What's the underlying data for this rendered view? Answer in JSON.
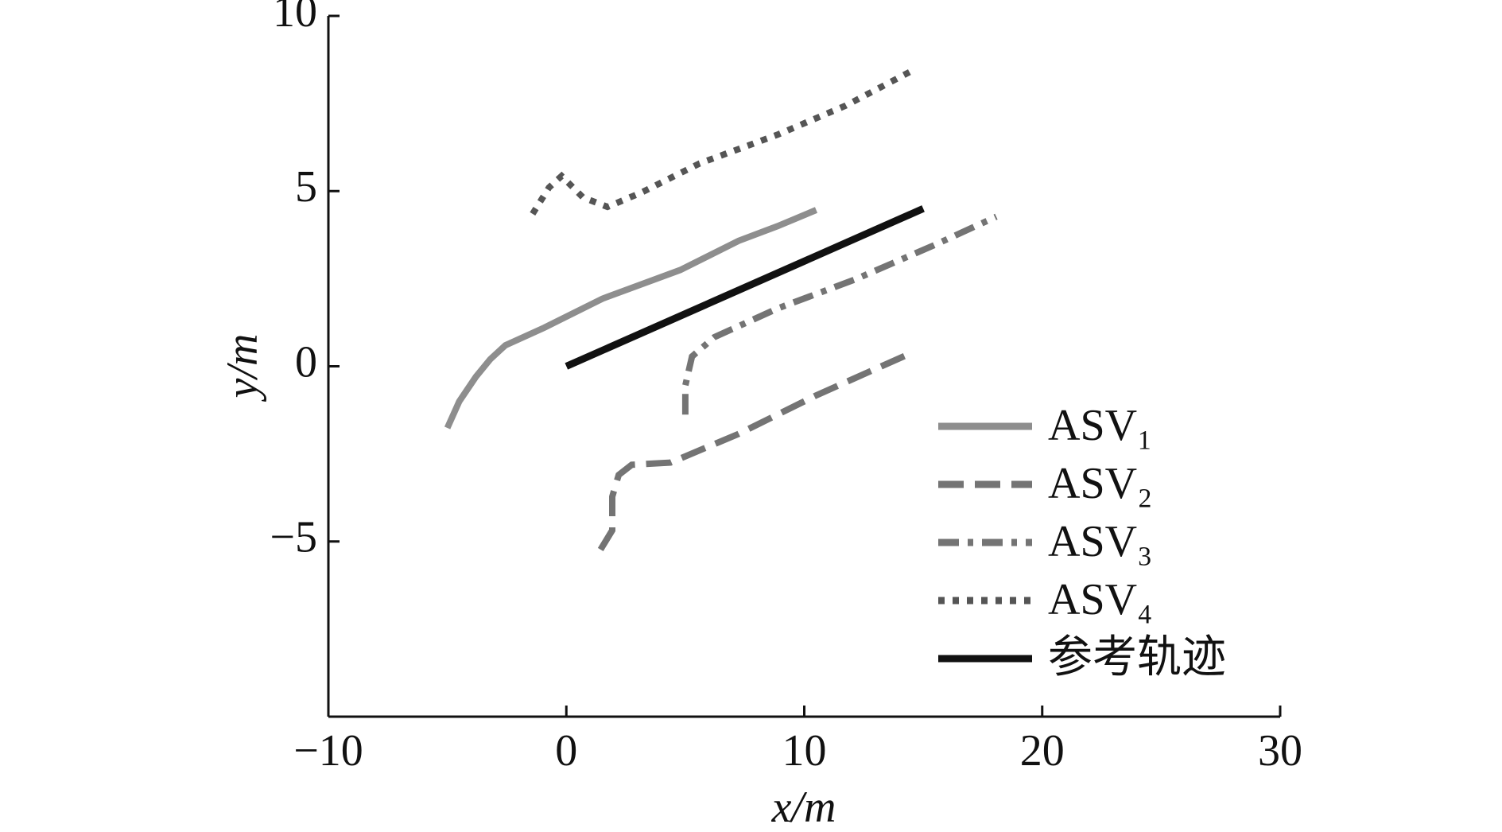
{
  "chart_data": {
    "type": "line",
    "xlabel": "x/m",
    "ylabel": "y/m",
    "xlim": [
      -10,
      30
    ],
    "ylim": [
      -10,
      10
    ],
    "xticks": [
      {
        "value": -10,
        "label": "−10"
      },
      0,
      10,
      20,
      30
    ],
    "yticks": [
      {
        "value": -5,
        "label": "−5"
      },
      0,
      5,
      10
    ],
    "grid": false,
    "legend": "lower right",
    "series": [
      {
        "name": "ASV₁",
        "color": "#8e8e8e",
        "style": "solid",
        "x": [
          -5.0,
          -4.5,
          -3.8,
          -3.2,
          -2.56,
          -0.93,
          1.52,
          4.79,
          7.24,
          8.88,
          10.5
        ],
        "y": [
          -1.76,
          -1.0,
          -0.3,
          0.2,
          0.6,
          1.1,
          1.93,
          2.75,
          3.58,
          4.0,
          4.46
        ]
      },
      {
        "name": "ASV₂",
        "color": "#747474",
        "style": "dashed",
        "x": [
          1.44,
          1.93,
          1.93,
          2.2,
          2.75,
          4.38,
          7.24,
          10.5,
          14.6
        ],
        "y": [
          -5.23,
          -4.68,
          -3.72,
          -3.1,
          -2.81,
          -2.75,
          -1.93,
          -0.83,
          0.41
        ]
      },
      {
        "name": "ASV₃",
        "color": "#747474",
        "style": "dashdot",
        "x": [
          5.0,
          5.0,
          5.28,
          6.22,
          8.88,
          12.14,
          15.4,
          18.07
        ],
        "y": [
          -1.38,
          -0.55,
          0.28,
          0.83,
          1.65,
          2.48,
          3.44,
          4.27
        ]
      },
      {
        "name": "ASV₄",
        "color": "#555555",
        "style": "dotted",
        "x": [
          -1.42,
          -0.73,
          -0.2,
          0.7,
          1.73,
          3.16,
          5.6,
          8.88,
          11.74,
          14.6
        ],
        "y": [
          4.35,
          5.1,
          5.43,
          4.82,
          4.55,
          4.96,
          5.79,
          6.61,
          7.44,
          8.46
        ]
      },
      {
        "name": "参考轨迹",
        "color": "#111111",
        "style": "solid",
        "x": [
          0,
          15
        ],
        "y": [
          0,
          4.5
        ]
      }
    ]
  }
}
